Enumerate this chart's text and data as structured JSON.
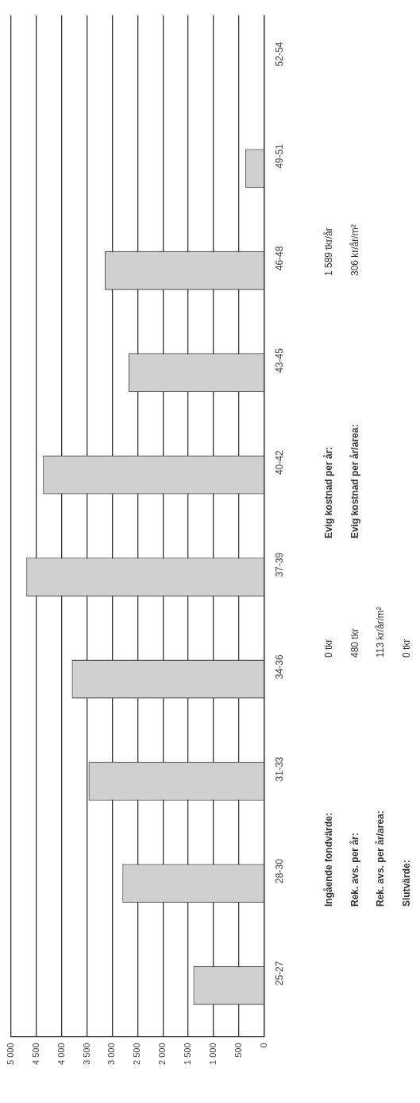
{
  "chart_data": {
    "type": "bar",
    "orientation": "horizontal",
    "categories": [
      "52-54",
      "49-51",
      "46-48",
      "43-45",
      "40-42",
      "37-39",
      "34-36",
      "31-33",
      "28-30",
      "25-27"
    ],
    "values": [
      0,
      370,
      3150,
      2680,
      4370,
      4700,
      3800,
      3470,
      2800,
      1400
    ],
    "color": "#d0d0d0",
    "xlim": [
      5000,
      0
    ],
    "xticks": [
      0,
      500,
      {
        "value": 1000,
        "label": "1 000"
      },
      {
        "value": 1500,
        "label": "1 500"
      },
      {
        "value": 2000,
        "label": "2 000"
      },
      {
        "value": 2500,
        "label": "2 500"
      },
      {
        "value": 3000,
        "label": "3 000"
      },
      {
        "value": 3500,
        "label": "3 500"
      },
      {
        "value": 4000,
        "label": "4 000"
      },
      {
        "value": 4500,
        "label": "4 500"
      },
      {
        "value": 5000,
        "label": "5 000"
      }
    ],
    "grid": "x",
    "legend": false,
    "annotations": [
      "Ingående fondvärde:",
      "0 tkr",
      "Rek. avs. per år:",
      "480 tkr",
      "Rek. avs. per år/area:",
      "113 kr/år/m²",
      "Slutvärde:",
      "0 tkr",
      "Evig kostnad per år:",
      "1 589 tkr/år",
      "Evig kostnad per år/area:",
      "306 kr/år/m²"
    ]
  }
}
